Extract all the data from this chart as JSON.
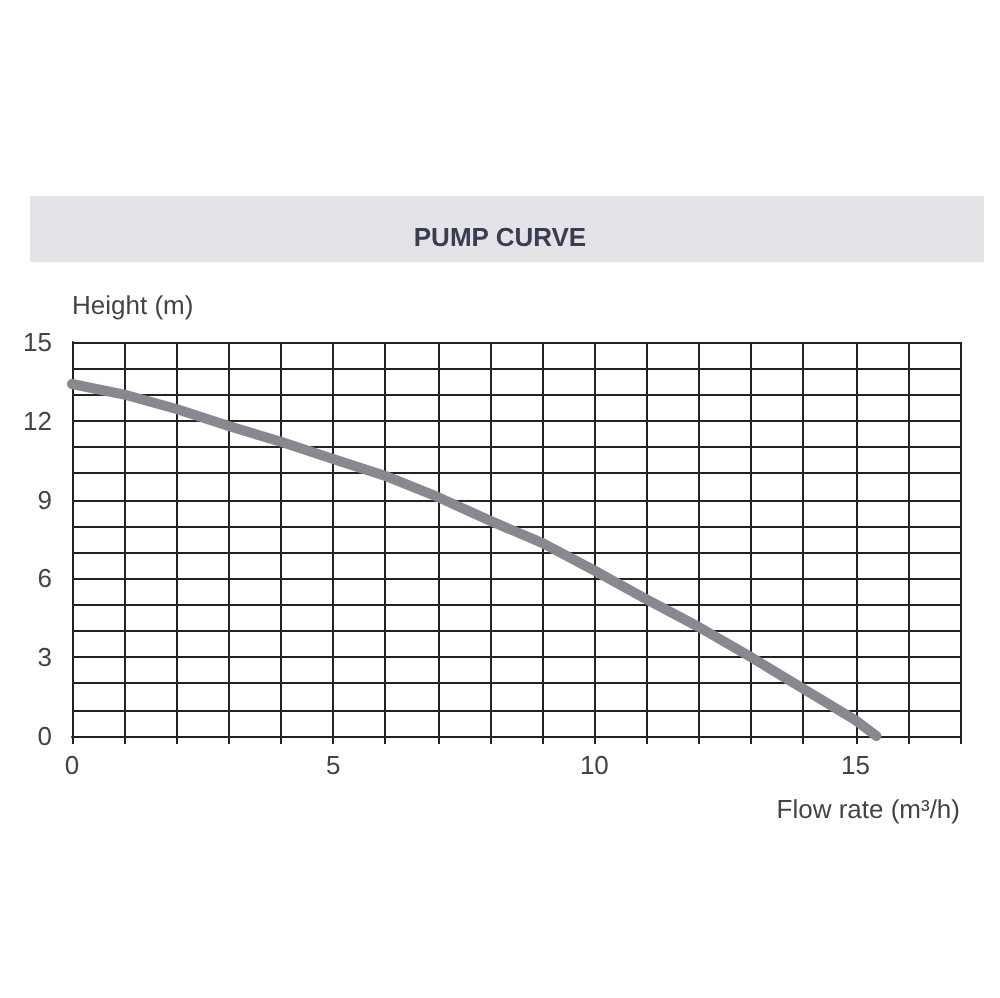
{
  "chart_data": {
    "type": "line",
    "title": "PUMP CURVE",
    "xlabel": "Flow rate (m³/h)",
    "ylabel": "Height (m)",
    "x": [
      0,
      1,
      2,
      3,
      4,
      5,
      6,
      7,
      8,
      9,
      10,
      11,
      12,
      13,
      14,
      15,
      15.4
    ],
    "series": [
      {
        "color": "#8a8790",
        "values": [
          13.4,
          13.0,
          12.45,
          11.8,
          11.2,
          10.55,
          9.9,
          9.1,
          8.2,
          7.35,
          6.3,
          5.2,
          4.15,
          3.0,
          1.8,
          0.6,
          0
        ]
      }
    ],
    "xlim": [
      0,
      17
    ],
    "xticks": [
      0,
      5,
      10,
      15
    ],
    "ylim": [
      0,
      15
    ],
    "yticks": [
      0,
      3,
      6,
      9,
      12,
      15
    ],
    "grid": true,
    "marker": "none",
    "line_style": "solid"
  }
}
